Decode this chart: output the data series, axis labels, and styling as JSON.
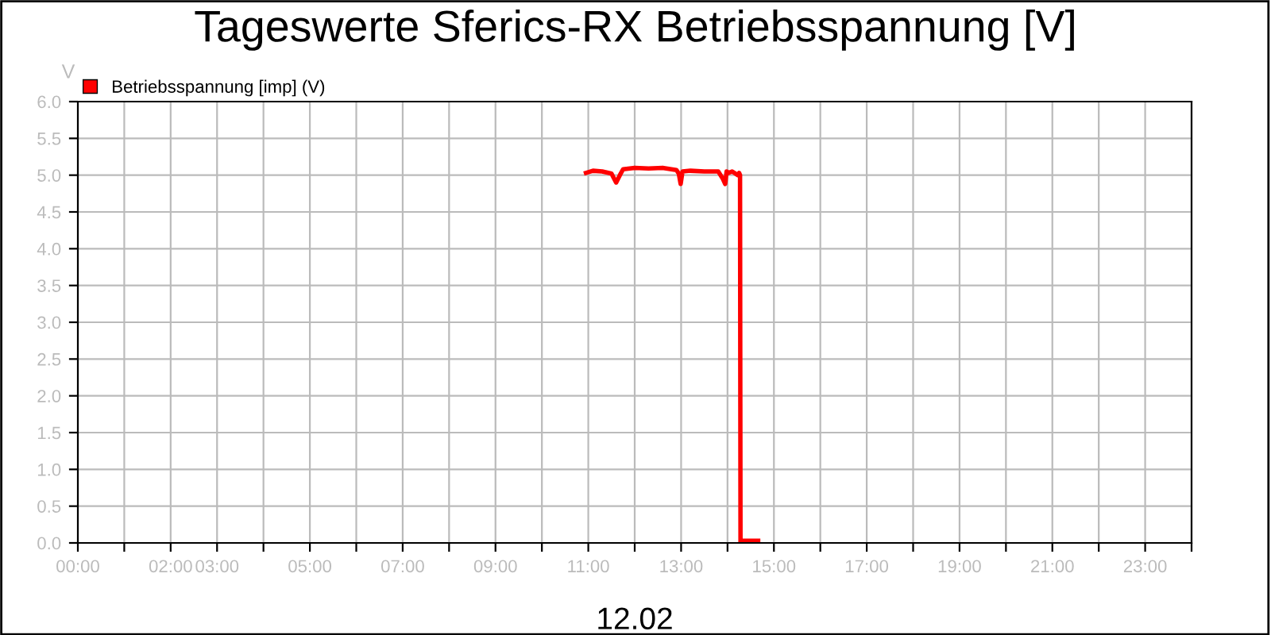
{
  "chart_data": {
    "type": "line",
    "title": "Tageswerte Sferics-RX Betriebsspannung [V]",
    "ylabel": "V",
    "xlabel": "12.02",
    "series": [
      {
        "name": "Betriebsspannung [imp] (V)",
        "color": "#ff0000",
        "x": [
          10.95,
          11.1,
          11.3,
          11.5,
          11.6,
          11.68,
          11.75,
          12.0,
          12.3,
          12.6,
          12.9,
          12.95,
          12.99,
          13.03,
          13.2,
          13.5,
          13.8,
          13.9,
          13.95,
          13.98,
          14.02,
          14.1,
          14.22,
          14.25,
          14.27,
          14.28,
          14.3,
          14.5,
          14.66
        ],
        "values": [
          5.03,
          5.06,
          5.05,
          5.02,
          4.9,
          5.0,
          5.08,
          5.1,
          5.09,
          5.1,
          5.07,
          5.02,
          4.88,
          5.05,
          5.06,
          5.05,
          5.05,
          4.95,
          4.88,
          5.05,
          5.03,
          5.05,
          5.0,
          5.03,
          5.0,
          0.0,
          0.03,
          0.03,
          0.03
        ]
      }
    ],
    "xlim": [
      0,
      24
    ],
    "ylim": [
      0,
      6
    ],
    "xticks": [
      {
        "value": 0,
        "label": "00:00"
      },
      {
        "value": 1,
        "label": null
      },
      {
        "value": 2,
        "label": "02:00"
      },
      {
        "value": 3,
        "label": "03:00"
      },
      {
        "value": 4,
        "label": null
      },
      {
        "value": 5,
        "label": "05:00"
      },
      {
        "value": 6,
        "label": null
      },
      {
        "value": 7,
        "label": "07:00"
      },
      {
        "value": 8,
        "label": null
      },
      {
        "value": 9,
        "label": "09:00"
      },
      {
        "value": 10,
        "label": null
      },
      {
        "value": 11,
        "label": "11:00"
      },
      {
        "value": 12,
        "label": null
      },
      {
        "value": 13,
        "label": "13:00"
      },
      {
        "value": 14,
        "label": null
      },
      {
        "value": 15,
        "label": "15:00"
      },
      {
        "value": 16,
        "label": null
      },
      {
        "value": 17,
        "label": "17:00"
      },
      {
        "value": 18,
        "label": null
      },
      {
        "value": 19,
        "label": "19:00"
      },
      {
        "value": 20,
        "label": null
      },
      {
        "value": 21,
        "label": "21:00"
      },
      {
        "value": 22,
        "label": null
      },
      {
        "value": 23,
        "label": "23:00"
      },
      {
        "value": 24,
        "label": null
      }
    ],
    "yticks": [
      {
        "value": 0,
        "label": "0.0"
      },
      {
        "value": 0.5,
        "label": "0.5"
      },
      {
        "value": 1,
        "label": "1.0"
      },
      {
        "value": 1.5,
        "label": "1.5"
      },
      {
        "value": 2,
        "label": "2.0"
      },
      {
        "value": 2.5,
        "label": "2.5"
      },
      {
        "value": 3,
        "label": "3.0"
      },
      {
        "value": 3.5,
        "label": "3.5"
      },
      {
        "value": 4,
        "label": "4.0"
      },
      {
        "value": 4.5,
        "label": "4.5"
      },
      {
        "value": 5,
        "label": "5.0"
      },
      {
        "value": 5.5,
        "label": "5.5"
      },
      {
        "value": 6,
        "label": "6.0"
      }
    ],
    "grid": true,
    "legend": "top left",
    "marker": "none",
    "line_style": "solid"
  }
}
